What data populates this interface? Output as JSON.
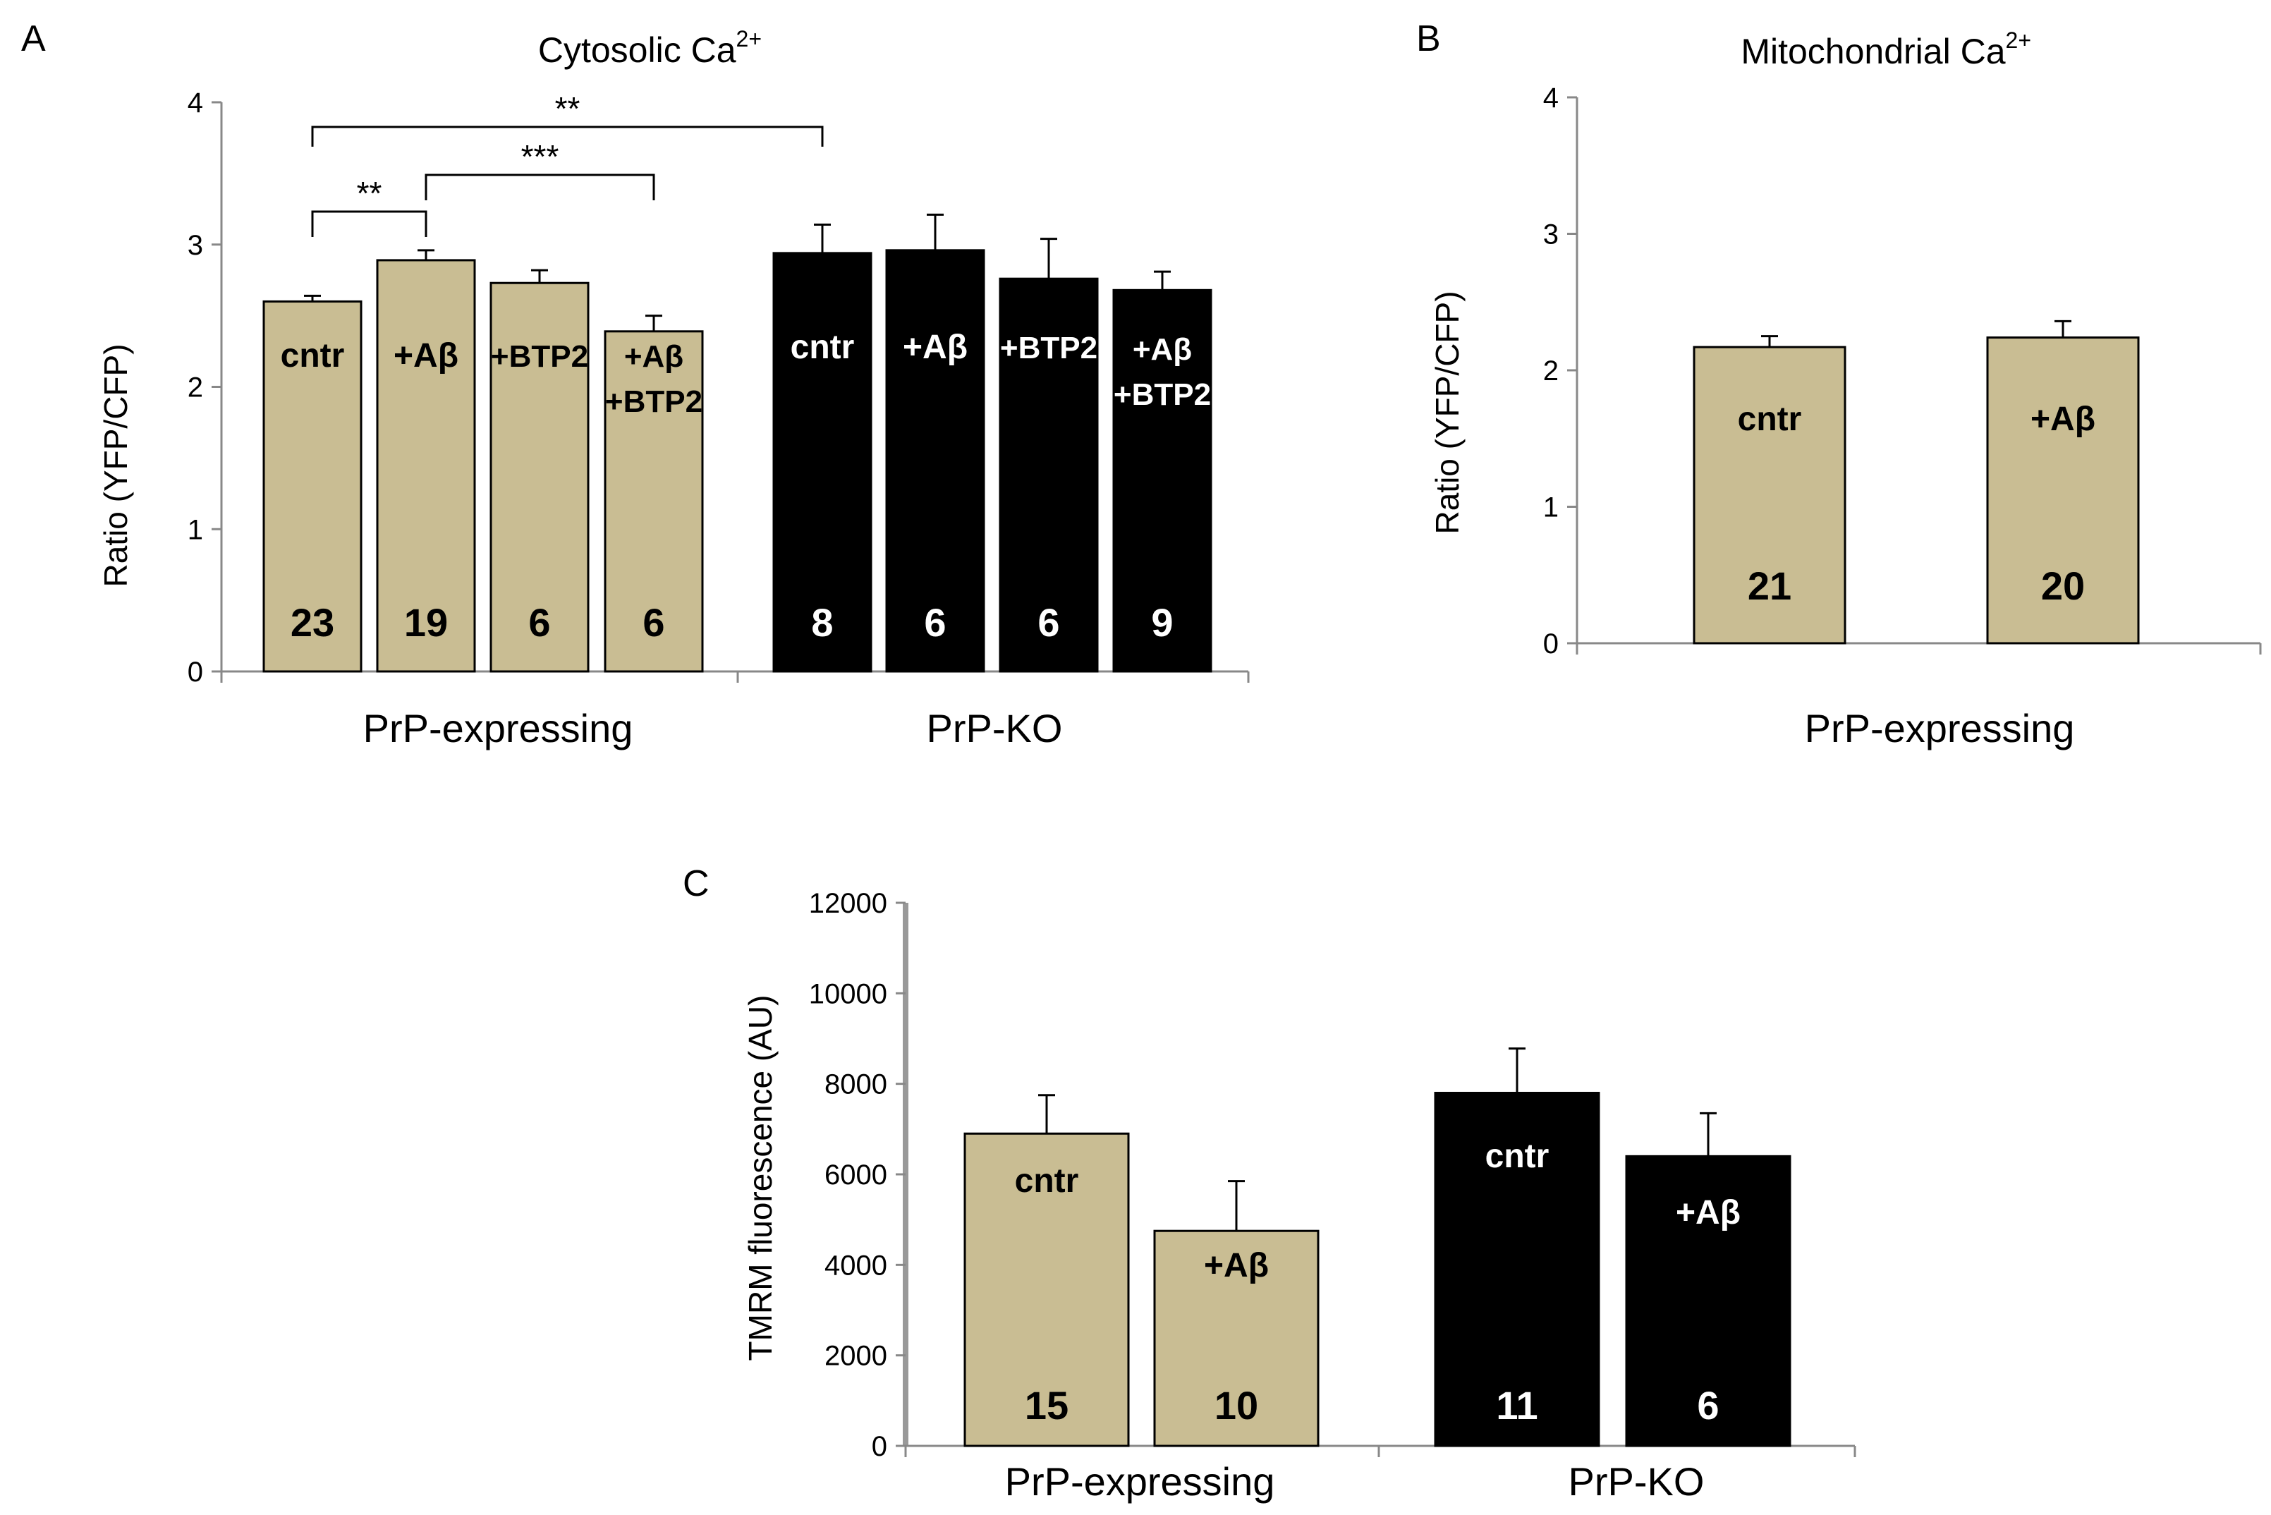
{
  "colors": {
    "tan": "#c9bd93",
    "black": "#000000",
    "axis": "#888888",
    "white": "#ffffff"
  },
  "chart_data": [
    {
      "type": "bar",
      "panel": "A",
      "title": "Cytosolic Ca",
      "title_superscript": "2+",
      "ylabel": "Ratio (YFP/CFP)",
      "ylim": [
        0,
        4
      ],
      "yticks": [
        "0",
        "1",
        "2",
        "3",
        "4"
      ],
      "groups": [
        "PrP-expressing",
        "PrP-KO"
      ],
      "bars": [
        {
          "label": "cntr",
          "value": 2.6,
          "error": 0.04,
          "n": "23",
          "group": "PrP-expressing",
          "color": "tan"
        },
        {
          "label": "+Aβ",
          "value": 2.89,
          "error": 0.07,
          "n": "19",
          "group": "PrP-expressing",
          "color": "tan"
        },
        {
          "label": "+BTP2",
          "value": 2.73,
          "error": 0.09,
          "n": "6",
          "group": "PrP-expressing",
          "color": "tan"
        },
        {
          "label": "+Aβ\n+BTP2",
          "value": 2.39,
          "error": 0.11,
          "n": "6",
          "group": "PrP-expressing",
          "color": "tan"
        },
        {
          "label": "cntr",
          "value": 2.94,
          "error": 0.2,
          "n": "8",
          "group": "PrP-KO",
          "color": "black"
        },
        {
          "label": "+Aβ",
          "value": 2.96,
          "error": 0.25,
          "n": "6",
          "group": "PrP-KO",
          "color": "black"
        },
        {
          "label": "+BTP2",
          "value": 2.76,
          "error": 0.28,
          "n": "6",
          "group": "PrP-KO",
          "color": "black"
        },
        {
          "label": "+Aβ\n+BTP2",
          "value": 2.68,
          "error": 0.13,
          "n": "9",
          "group": "PrP-KO",
          "color": "black"
        }
      ],
      "significance": [
        {
          "from": 0,
          "to": 4,
          "label": "**"
        },
        {
          "from": 1,
          "to": 3,
          "label": "***"
        },
        {
          "from": 0,
          "to": 1,
          "label": "**"
        }
      ]
    },
    {
      "type": "bar",
      "panel": "B",
      "title": "Mitochondrial Ca",
      "title_superscript": "2+",
      "ylabel": "Ratio (YFP/CFP)",
      "ylim": [
        0,
        4
      ],
      "yticks": [
        "0",
        "1",
        "2",
        "3",
        "4"
      ],
      "groups": [
        "PrP-expressing"
      ],
      "bars": [
        {
          "label": "cntr",
          "value": 2.17,
          "error": 0.08,
          "n": "21",
          "group": "PrP-expressing",
          "color": "tan"
        },
        {
          "label": "+Aβ",
          "value": 2.24,
          "error": 0.12,
          "n": "20",
          "group": "PrP-expressing",
          "color": "tan"
        }
      ]
    },
    {
      "type": "bar",
      "panel": "C",
      "title": "",
      "ylabel": "TMRM fluorescence (AU)",
      "ylim": [
        0,
        12000
      ],
      "yticks": [
        "0",
        "2000",
        "4000",
        "6000",
        "8000",
        "10000",
        "12000"
      ],
      "groups": [
        "PrP-expressing",
        "PrP-KO"
      ],
      "bars": [
        {
          "label": "cntr",
          "value": 6900,
          "error": 850,
          "n": "15",
          "group": "PrP-expressing",
          "color": "tan"
        },
        {
          "label": "+Aβ",
          "value": 4750,
          "error": 1100,
          "n": "10",
          "group": "PrP-expressing",
          "color": "tan"
        },
        {
          "label": "cntr",
          "value": 7800,
          "error": 980,
          "n": "11",
          "group": "PrP-KO",
          "color": "black"
        },
        {
          "label": "+Aβ",
          "value": 6400,
          "error": 950,
          "n": "6",
          "group": "PrP-KO",
          "color": "black"
        }
      ]
    }
  ]
}
